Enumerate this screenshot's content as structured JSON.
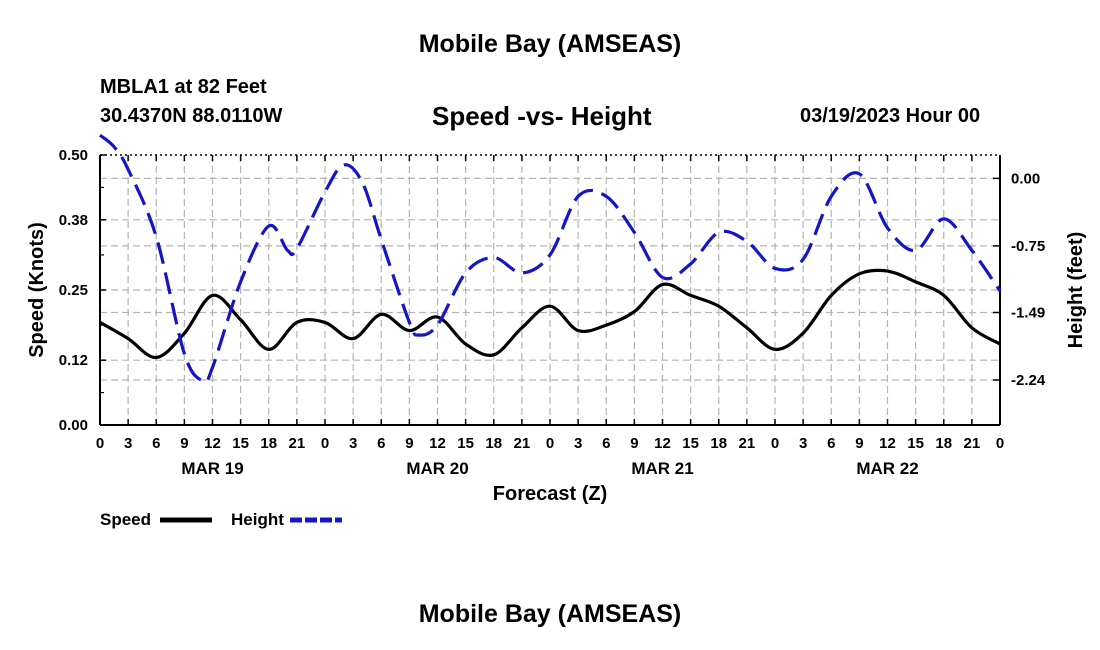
{
  "page": {
    "main_title": "Mobile Bay (AMSEAS)",
    "bottom_title": "Mobile Bay (AMSEAS)",
    "station_name": "MBLA1 at 82 Feet",
    "station_coords": "30.4370N  88.0110W",
    "forecast_date": "03/19/2023 Hour 00"
  },
  "colors": {
    "speed": "#000000",
    "height": "#1515c8",
    "grid": "#b4b4b4"
  },
  "chart_data": {
    "type": "line",
    "title": "Speed -vs- Height",
    "xlabel": "Forecast (Z)",
    "ylabel": "Speed (Knots)",
    "y2label": "Height (feet)",
    "x_hours_range": [
      0,
      96
    ],
    "x_tick_step_hours": 3,
    "x_tick_labels": [
      "0",
      "3",
      "6",
      "9",
      "12",
      "15",
      "18",
      "21",
      "0",
      "3",
      "6",
      "9",
      "12",
      "15",
      "18",
      "21",
      "0",
      "3",
      "6",
      "9",
      "12",
      "15",
      "18",
      "21",
      "0",
      "3",
      "6",
      "9",
      "12",
      "15",
      "18",
      "21",
      "0"
    ],
    "date_labels": [
      {
        "label": "MAR 19",
        "hour": 12
      },
      {
        "label": "MAR 20",
        "hour": 36
      },
      {
        "label": "MAR 21",
        "hour": 60
      },
      {
        "label": "MAR 22",
        "hour": 84
      }
    ],
    "ylim": [
      0,
      0.5
    ],
    "y_ticks": [
      0.0,
      0.12,
      0.25,
      0.38,
      0.5
    ],
    "y_tick_labels": [
      "0.00",
      "0.12",
      "0.25",
      "0.38",
      "0.50"
    ],
    "y2lim": [
      -2.74,
      0.26
    ],
    "y2_ticks": [
      -2.24,
      -1.49,
      -0.75,
      0.0
    ],
    "y2_tick_labels": [
      "-2.24",
      "-1.49",
      "-0.75",
      "0.00"
    ],
    "grid": true,
    "legend": {
      "position": "bottom-left",
      "speed_label": "Speed",
      "height_label": "Height"
    },
    "series": [
      {
        "name": "Speed",
        "axis": "left",
        "style": "solid",
        "x": [
          0,
          3,
          6,
          9,
          12,
          15,
          18,
          21,
          24,
          27,
          30,
          33,
          36,
          39,
          42,
          45,
          48,
          51,
          54,
          57,
          60,
          63,
          66,
          69,
          72,
          75,
          78,
          81,
          84,
          87,
          90,
          93,
          96
        ],
        "values": [
          0.19,
          0.16,
          0.125,
          0.17,
          0.24,
          0.195,
          0.14,
          0.19,
          0.19,
          0.16,
          0.205,
          0.175,
          0.2,
          0.15,
          0.13,
          0.18,
          0.22,
          0.175,
          0.185,
          0.21,
          0.26,
          0.24,
          0.22,
          0.18,
          0.14,
          0.17,
          0.24,
          0.28,
          0.285,
          0.265,
          0.24,
          0.18,
          0.15
        ]
      },
      {
        "name": "Height",
        "axis": "right",
        "style": "dashed",
        "x": [
          0,
          1.5,
          3,
          6,
          9,
          11,
          12,
          15,
          18,
          20,
          21,
          24,
          26,
          28,
          30,
          33,
          34,
          36,
          39,
          42,
          45,
          48,
          51,
          54,
          57,
          60,
          63,
          66,
          69,
          72,
          75,
          78,
          81,
          84,
          87,
          90,
          93,
          96
        ],
        "values": [
          0.48,
          0.35,
          0.1,
          -0.65,
          -1.95,
          -2.25,
          -2.1,
          -1.15,
          -0.53,
          -0.8,
          -0.78,
          -0.15,
          0.15,
          -0.05,
          -0.68,
          -1.6,
          -1.74,
          -1.63,
          -1.05,
          -0.88,
          -1.05,
          -0.85,
          -0.2,
          -0.2,
          -0.6,
          -1.1,
          -0.95,
          -0.6,
          -0.7,
          -1.0,
          -0.9,
          -0.2,
          0.05,
          -0.55,
          -0.8,
          -0.45,
          -0.8,
          -1.25
        ]
      }
    ]
  }
}
